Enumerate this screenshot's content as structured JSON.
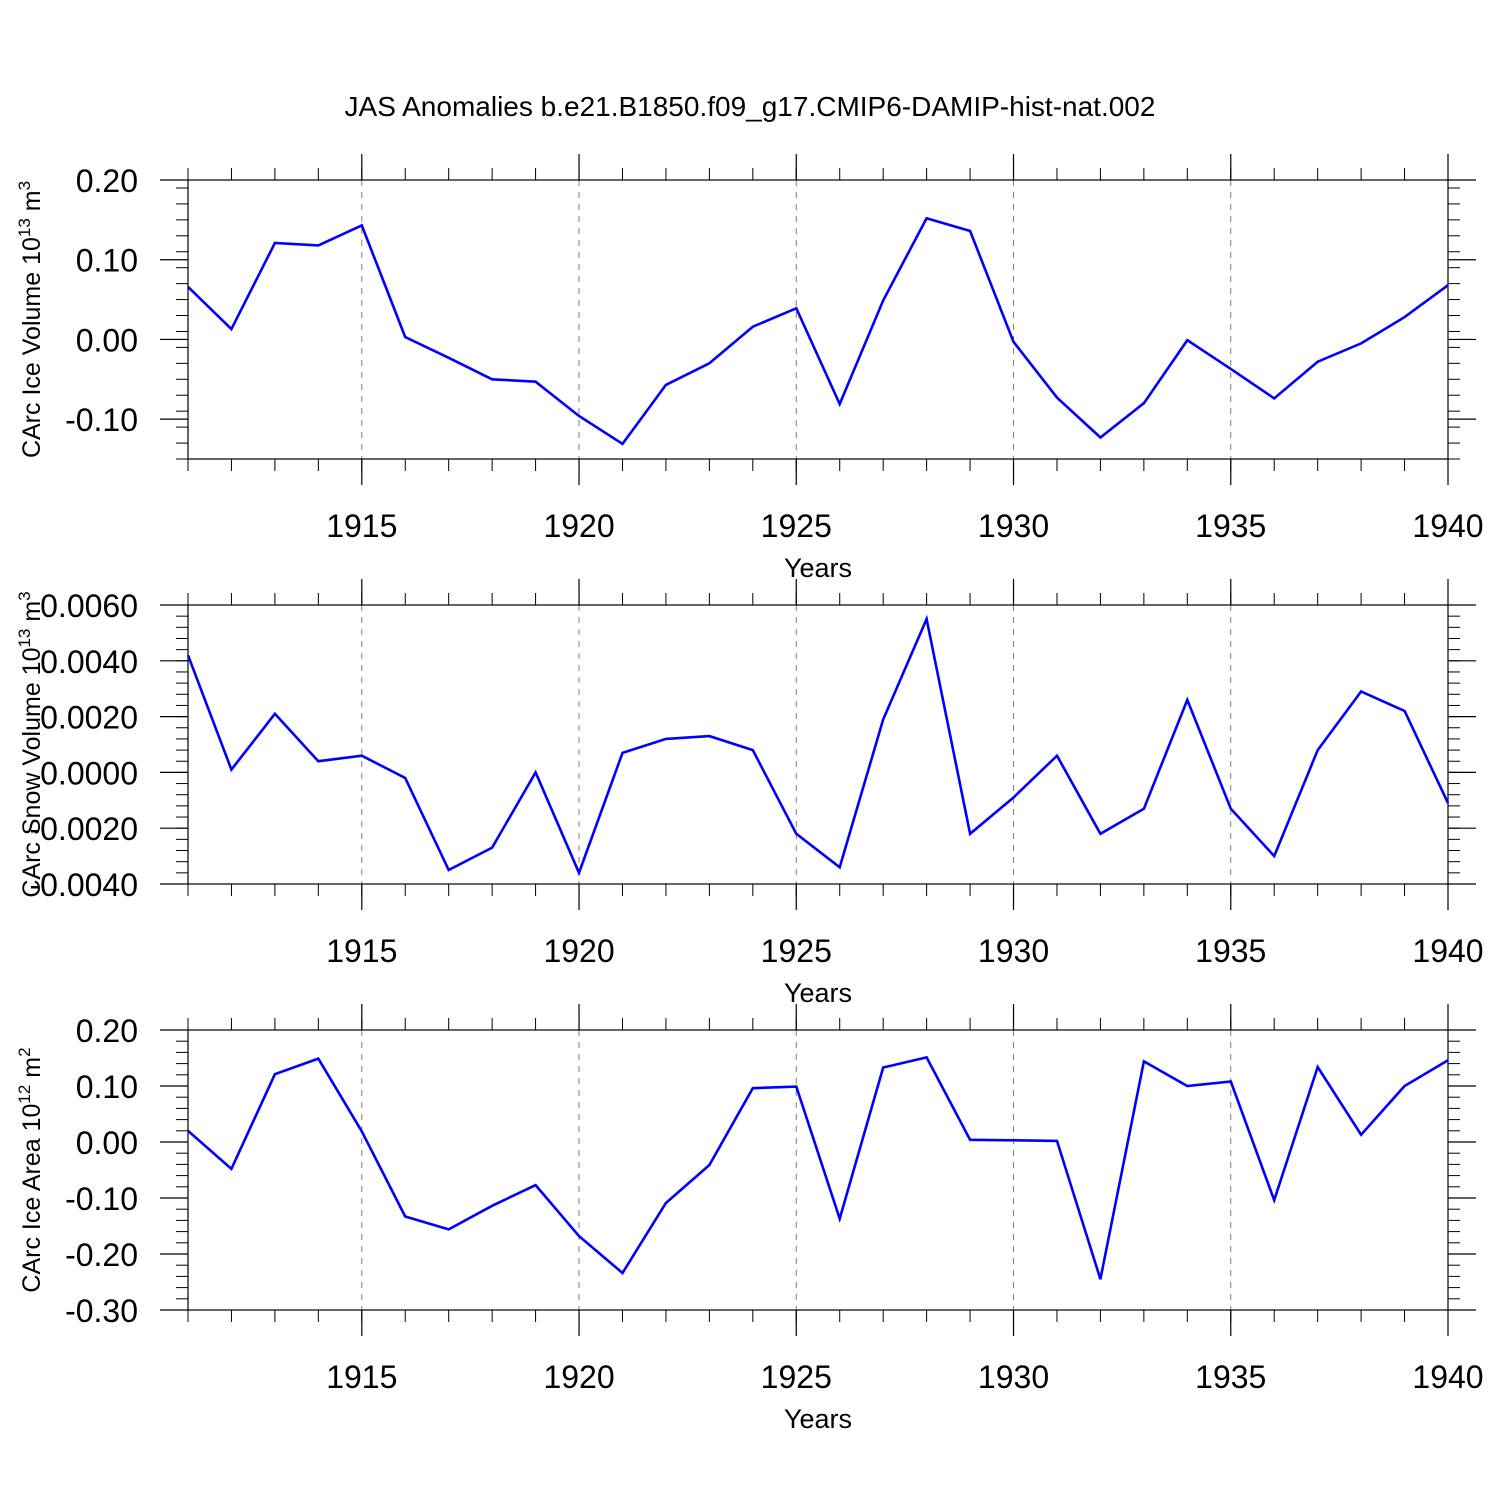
{
  "title": "JAS Anomalies b.e21.B1850.f09_g17.CMIP6-DAMIP-hist-nat.002",
  "colors": {
    "line": "#0000ff",
    "axes": "#000000",
    "grid": "#808080"
  },
  "chart_data": [
    {
      "type": "line",
      "ylabel_main": "CArc Ice Volume 10",
      "ylabel_exp": "13",
      "ylabel_unit": "m",
      "ylabel_unit_exp": "3",
      "xlabel": "Years",
      "xlim": [
        1911,
        1940
      ],
      "ylim": [
        -0.15,
        0.2
      ],
      "x_ticks": [
        "1915",
        "1920",
        "1925",
        "1930",
        "1935",
        "1940"
      ],
      "y_ticks": [
        "0.20",
        "0.10",
        "0.00",
        "-0.10"
      ],
      "y_tick_values": [
        0.2,
        0.1,
        0.0,
        -0.1
      ],
      "grid": "vertical dashed at major ticks",
      "x": [
        1911,
        1912,
        1913,
        1914,
        1915,
        1916,
        1917,
        1918,
        1919,
        1920,
        1921,
        1922,
        1923,
        1924,
        1925,
        1926,
        1927,
        1928,
        1929,
        1930,
        1931,
        1932,
        1933,
        1934,
        1935,
        1936,
        1937,
        1938,
        1939,
        1940
      ],
      "values": [
        0.066,
        0.013,
        0.121,
        0.118,
        0.143,
        0.003,
        -0.023,
        -0.05,
        -0.053,
        -0.096,
        -0.131,
        -0.057,
        -0.03,
        0.016,
        0.039,
        -0.081,
        0.049,
        0.152,
        0.136,
        -0.003,
        -0.073,
        -0.123,
        -0.08,
        -0.001,
        -0.037,
        -0.074,
        -0.028,
        -0.005,
        0.028,
        0.068
      ]
    },
    {
      "type": "line",
      "ylabel_main": "CArc Snow Volume 10",
      "ylabel_exp": "13",
      "ylabel_unit": "m",
      "ylabel_unit_exp": "3",
      "xlabel": "Years",
      "xlim": [
        1911,
        1940
      ],
      "ylim": [
        -0.004,
        0.006
      ],
      "x_ticks": [
        "1915",
        "1920",
        "1925",
        "1930",
        "1935",
        "1940"
      ],
      "y_ticks": [
        "0.0060",
        "0.0040",
        "0.0020",
        "0.0000",
        "-0.0020",
        "-0.0040"
      ],
      "y_tick_values": [
        0.006,
        0.004,
        0.002,
        0.0,
        -0.002,
        -0.004
      ],
      "grid": "vertical dashed at major ticks",
      "x": [
        1911,
        1912,
        1913,
        1914,
        1915,
        1916,
        1917,
        1918,
        1919,
        1920,
        1921,
        1922,
        1923,
        1924,
        1925,
        1926,
        1927,
        1928,
        1929,
        1930,
        1931,
        1932,
        1933,
        1934,
        1935,
        1936,
        1937,
        1938,
        1939,
        1940
      ],
      "values": [
        0.0042,
        0.0001,
        0.0021,
        0.0004,
        0.0006,
        -0.0002,
        -0.0035,
        -0.0027,
        0.0,
        -0.0036,
        0.0007,
        0.0012,
        0.0013,
        0.0008,
        -0.0022,
        -0.0034,
        0.0019,
        0.0055,
        -0.0022,
        -0.0009,
        0.0006,
        -0.0022,
        -0.0013,
        0.0026,
        -0.0013,
        -0.003,
        0.0008,
        0.0029,
        0.0022,
        -0.0011
      ]
    },
    {
      "type": "line",
      "ylabel_main": "CArc Ice Area 10",
      "ylabel_exp": "12",
      "ylabel_unit": "m",
      "ylabel_unit_exp": "2",
      "xlabel": "Years",
      "xlim": [
        1911,
        1940
      ],
      "ylim": [
        -0.3,
        0.2
      ],
      "x_ticks": [
        "1915",
        "1920",
        "1925",
        "1930",
        "1935",
        "1940"
      ],
      "y_ticks": [
        "0.20",
        "0.10",
        "0.00",
        "-0.10",
        "-0.20",
        "-0.30"
      ],
      "y_tick_values": [
        0.2,
        0.1,
        0.0,
        -0.1,
        -0.2,
        -0.3
      ],
      "grid": "vertical dashed at major ticks",
      "x": [
        1911,
        1912,
        1913,
        1914,
        1915,
        1916,
        1917,
        1918,
        1919,
        1920,
        1921,
        1922,
        1923,
        1924,
        1925,
        1926,
        1927,
        1928,
        1929,
        1930,
        1931,
        1932,
        1933,
        1934,
        1935,
        1936,
        1937,
        1938,
        1939,
        1940
      ],
      "values": [
        0.02,
        -0.048,
        0.121,
        0.149,
        0.019,
        -0.133,
        -0.156,
        -0.114,
        -0.077,
        -0.168,
        -0.234,
        -0.109,
        -0.041,
        0.096,
        0.099,
        -0.137,
        0.133,
        0.151,
        0.004,
        0.003,
        0.002,
        -0.245,
        0.144,
        0.1,
        0.108,
        -0.104,
        0.134,
        0.013,
        0.1,
        0.146
      ]
    }
  ]
}
